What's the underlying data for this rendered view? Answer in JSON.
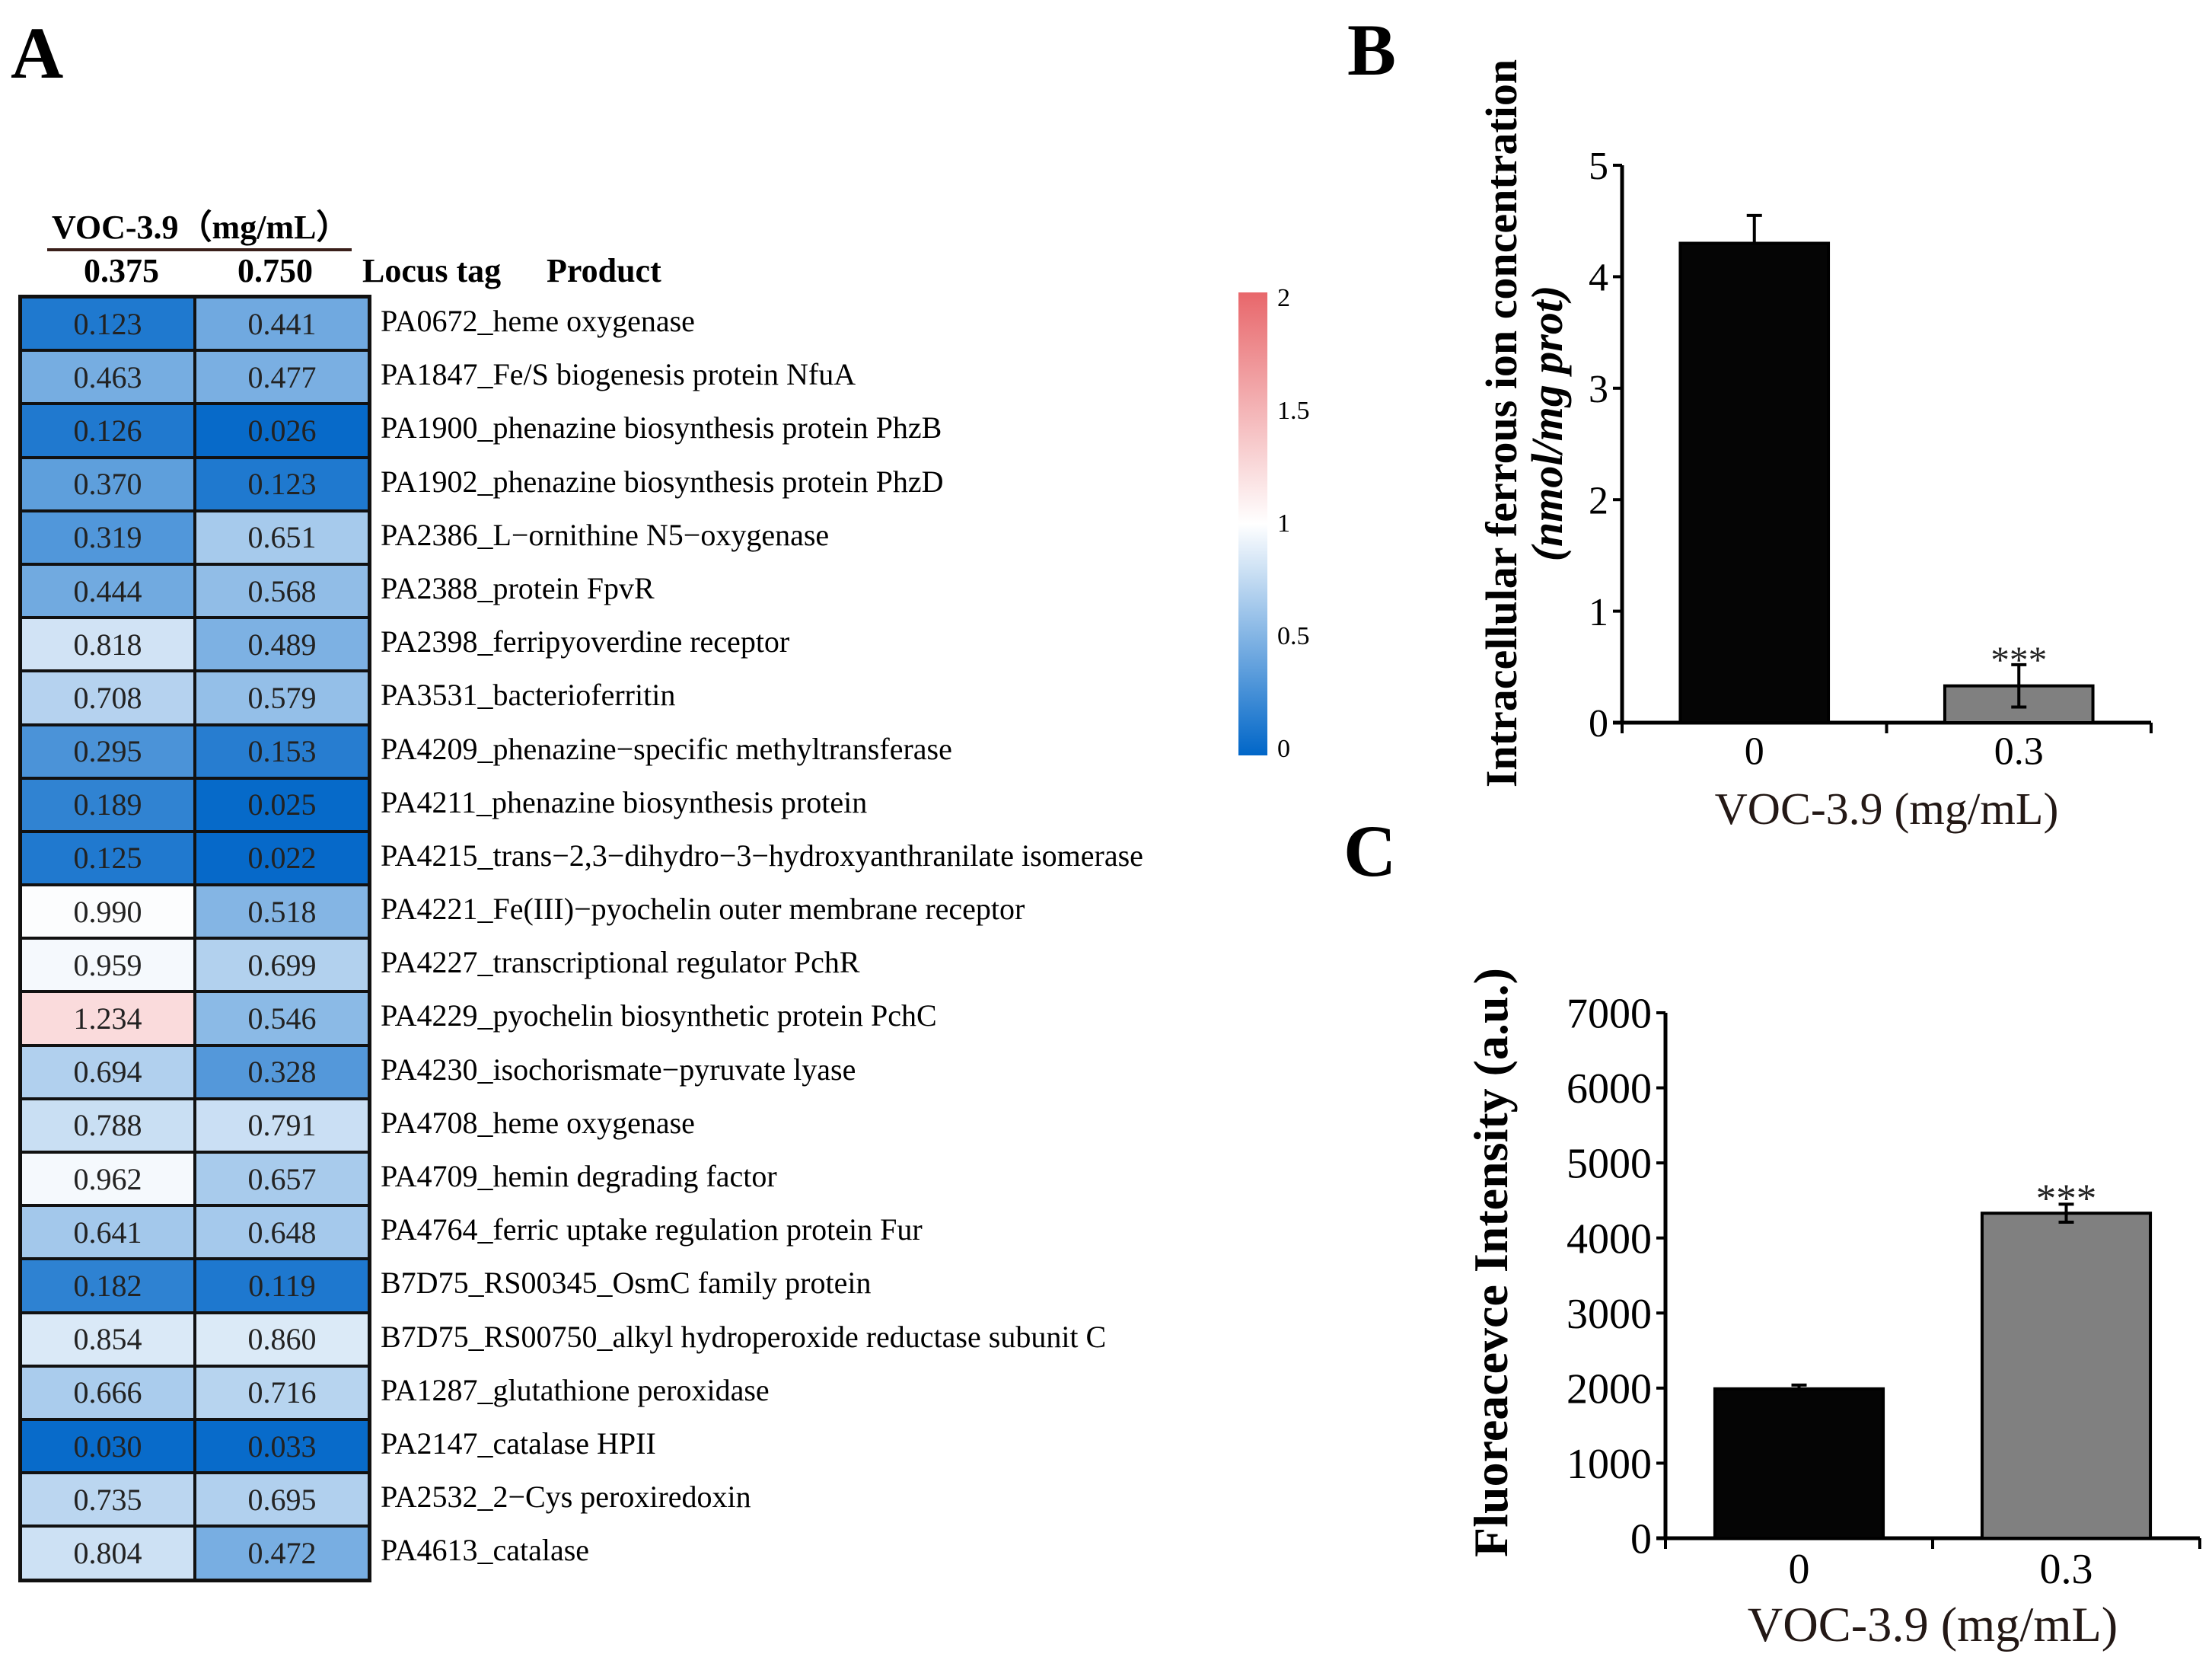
{
  "panels": {
    "a": "A",
    "b": "B",
    "c": "C"
  },
  "chart_data": [
    {
      "type": "heatmap",
      "title": "VOC-3.9（mg/mL）",
      "columns": [
        "0.375",
        "0.750"
      ],
      "row_header_locus": "Locus tag",
      "row_header_product": "Product",
      "colorbar": {
        "min": 0,
        "max": 2,
        "ticks": [
          "2",
          "1.5",
          "1",
          "0.5",
          "0"
        ],
        "low_color": "#0066C8",
        "mid_color": "#FFFFFF",
        "high_color": "#E8676B"
      },
      "rows": [
        {
          "label": "PA0672_heme oxygenase",
          "values": [
            "0.123",
            "0.441"
          ]
        },
        {
          "label": "PA1847_Fe/S biogenesis protein NfuA",
          "values": [
            "0.463",
            "0.477"
          ]
        },
        {
          "label": "PA1900_phenazine biosynthesis protein PhzB",
          "values": [
            "0.126",
            "0.026"
          ]
        },
        {
          "label": "PA1902_phenazine biosynthesis protein PhzD",
          "values": [
            "0.370",
            "0.123"
          ]
        },
        {
          "label": "PA2386_L−ornithine N5−oxygenase",
          "values": [
            "0.319",
            "0.651"
          ]
        },
        {
          "label": "PA2388_protein FpvR",
          "values": [
            "0.444",
            "0.568"
          ]
        },
        {
          "label": "PA2398_ferripyoverdine receptor",
          "values": [
            "0.818",
            "0.489"
          ]
        },
        {
          "label": "PA3531_bacterioferritin",
          "values": [
            "0.708",
            "0.579"
          ]
        },
        {
          "label": "PA4209_phenazine−specific methyltransferase",
          "values": [
            "0.295",
            "0.153"
          ]
        },
        {
          "label": "PA4211_phenazine biosynthesis protein",
          "values": [
            "0.189",
            "0.025"
          ]
        },
        {
          "label": "PA4215_trans−2,3−dihydro−3−hydroxyanthranilate isomerase",
          "values": [
            "0.125",
            "0.022"
          ]
        },
        {
          "label": "PA4221_Fe(III)−pyochelin outer membrane receptor",
          "values": [
            "0.990",
            "0.518"
          ]
        },
        {
          "label": "PA4227_transcriptional regulator PchR",
          "values": [
            "0.959",
            "0.699"
          ]
        },
        {
          "label": "PA4229_pyochelin biosynthetic protein PchC",
          "values": [
            "1.234",
            "0.546"
          ]
        },
        {
          "label": "PA4230_isochorismate−pyruvate lyase",
          "values": [
            "0.694",
            "0.328"
          ]
        },
        {
          "label": "PA4708_heme oxygenase",
          "values": [
            "0.788",
            "0.791"
          ]
        },
        {
          "label": "PA4709_hemin degrading factor",
          "values": [
            "0.962",
            "0.657"
          ]
        },
        {
          "label": "PA4764_ferric uptake regulation protein Fur",
          "values": [
            "0.641",
            "0.648"
          ]
        },
        {
          "label": "B7D75_RS00345_OsmC family protein",
          "values": [
            "0.182",
            "0.119"
          ]
        },
        {
          "label": "B7D75_RS00750_alkyl hydroperoxide reductase subunit C",
          "values": [
            "0.854",
            "0.860"
          ]
        },
        {
          "label": "PA1287_glutathione peroxidase",
          "values": [
            "0.666",
            "0.716"
          ]
        },
        {
          "label": "PA2147_catalase HPII",
          "values": [
            "0.030",
            "0.033"
          ]
        },
        {
          "label": "PA2532_2−Cys peroxiredoxin",
          "values": [
            "0.735",
            "0.695"
          ]
        },
        {
          "label": "PA4613_catalase",
          "values": [
            "0.804",
            "0.472"
          ]
        }
      ]
    },
    {
      "type": "bar",
      "categories": [
        "0",
        "0.3"
      ],
      "values": [
        4.3,
        0.33
      ],
      "errors": [
        0.25,
        0.19
      ],
      "significance": [
        "",
        "***"
      ],
      "colors": [
        "#050505",
        "#808080"
      ],
      "ylabel": "Intracellular ferrous ion concentration",
      "ylabel2": "(nmol/mg prot)",
      "xlabel": "VOC-3.9 (mg/mL)",
      "ylim": [
        0,
        5
      ],
      "yticks": [
        "0",
        "1",
        "2",
        "3",
        "4",
        "5"
      ]
    },
    {
      "type": "bar",
      "categories": [
        "0",
        "0.3"
      ],
      "values": [
        1990,
        4330
      ],
      "errors": [
        50,
        120
      ],
      "significance": [
        "",
        "***"
      ],
      "colors": [
        "#050505",
        "#808080"
      ],
      "ylabel": "Fluoreacevce Intensity (a.u.)",
      "xlabel": "VOC-3.9 (mg/mL)",
      "ylim": [
        0,
        7000
      ],
      "yticks": [
        "0",
        "1000",
        "2000",
        "3000",
        "4000",
        "5000",
        "6000",
        "7000"
      ]
    }
  ]
}
